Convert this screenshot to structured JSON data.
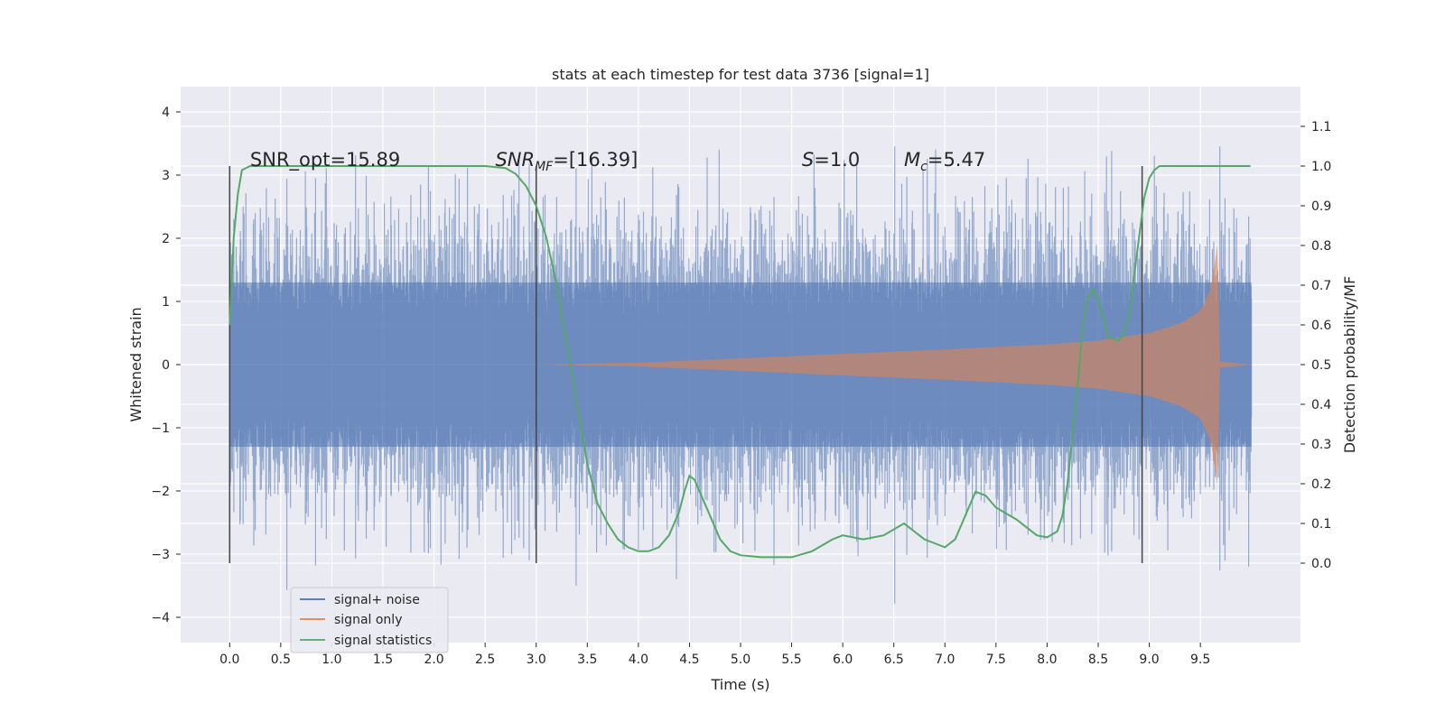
{
  "chart_data": {
    "type": "line",
    "title": "stats at each timestep for test data 3736 [signal=1]",
    "xlabel": "Time (s)",
    "ylabel_left": "Whitened strain",
    "ylabel_right": "Detection probability/MF",
    "xlim": [
      -0.48,
      10.48
    ],
    "ylim_left": [
      -4.4,
      4.4
    ],
    "ylim_right": [
      -0.2,
      1.2
    ],
    "x_ticks": [
      "0.0",
      "0.5",
      "1.0",
      "1.5",
      "2.0",
      "2.5",
      "3.0",
      "3.5",
      "4.0",
      "4.5",
      "5.0",
      "5.5",
      "6.0",
      "6.5",
      "7.0",
      "7.5",
      "8.0",
      "8.5",
      "9.0",
      "9.5"
    ],
    "y_ticks_left": [
      "4",
      "3",
      "2",
      "1",
      "0",
      "−1",
      "−2",
      "−3",
      "−4"
    ],
    "y_ticks_right": [
      "1.1",
      "1.0",
      "0.9",
      "0.8",
      "0.7",
      "0.6",
      "0.5",
      "0.4",
      "0.3",
      "0.2",
      "0.1",
      "0.0"
    ],
    "grid": true,
    "legend_position": "bottom-left",
    "annotations": [
      {
        "text": "SNR_opt=15.89",
        "x": 0.2
      },
      {
        "text_pre": "SNR",
        "text_sub": "MF",
        "text_post": "=[16.39]",
        "x": 2.6
      },
      {
        "text_pre": "S",
        "text_post": "=1.0",
        "x": 5.6
      },
      {
        "text_pre": "M",
        "text_sub": "c",
        "text_post": "=5.47",
        "x": 6.6
      }
    ],
    "vlines": [
      0.0,
      3.0,
      8.93
    ],
    "series": [
      {
        "name": "signal+ noise",
        "color": "#4c72b0",
        "kind": "noise",
        "x_range": [
          0.0,
          10.0
        ],
        "core_amplitude": 1.3,
        "peak_amplitude": 4.0
      },
      {
        "name": "signal only",
        "color": "#dd8452",
        "kind": "chirp",
        "x_range": [
          3.0,
          9.67
        ],
        "amplitude_points": [
          [
            3.0,
            0.0
          ],
          [
            4.0,
            0.03
          ],
          [
            5.0,
            0.1
          ],
          [
            6.0,
            0.17
          ],
          [
            7.0,
            0.24
          ],
          [
            8.0,
            0.32
          ],
          [
            8.5,
            0.38
          ],
          [
            9.0,
            0.5
          ],
          [
            9.3,
            0.65
          ],
          [
            9.5,
            0.85
          ],
          [
            9.6,
            1.2
          ],
          [
            9.65,
            1.7
          ],
          [
            9.67,
            2.0
          ],
          [
            9.69,
            0.05
          ],
          [
            10.0,
            0.0
          ]
        ]
      },
      {
        "name": "signal statistics",
        "color": "#55a868",
        "kind": "line",
        "axis": "right",
        "x": [
          0.0,
          0.04,
          0.08,
          0.12,
          0.2,
          0.3,
          0.5,
          1.0,
          1.5,
          2.0,
          2.5,
          2.7,
          2.8,
          2.9,
          3.0,
          3.1,
          3.2,
          3.3,
          3.4,
          3.5,
          3.6,
          3.7,
          3.8,
          3.9,
          4.0,
          4.1,
          4.2,
          4.3,
          4.4,
          4.45,
          4.5,
          4.55,
          4.6,
          4.7,
          4.8,
          4.9,
          5.0,
          5.2,
          5.5,
          5.7,
          5.9,
          6.0,
          6.2,
          6.4,
          6.6,
          6.8,
          6.9,
          7.0,
          7.1,
          7.2,
          7.3,
          7.4,
          7.5,
          7.7,
          7.8,
          7.9,
          8.0,
          8.1,
          8.15,
          8.2,
          8.3,
          8.35,
          8.4,
          8.45,
          8.5,
          8.55,
          8.6,
          8.7,
          8.75,
          8.8,
          8.85,
          8.9,
          8.95,
          9.0,
          9.05,
          9.1,
          9.2,
          9.5,
          9.99
        ],
        "values": [
          0.6,
          0.82,
          0.93,
          0.99,
          1.0,
          1.0,
          1.0,
          1.0,
          1.0,
          1.0,
          1.0,
          0.995,
          0.98,
          0.95,
          0.9,
          0.82,
          0.7,
          0.55,
          0.4,
          0.25,
          0.15,
          0.1,
          0.06,
          0.04,
          0.03,
          0.03,
          0.04,
          0.07,
          0.13,
          0.18,
          0.22,
          0.21,
          0.18,
          0.12,
          0.06,
          0.03,
          0.02,
          0.015,
          0.015,
          0.03,
          0.06,
          0.07,
          0.06,
          0.07,
          0.1,
          0.06,
          0.05,
          0.04,
          0.06,
          0.12,
          0.18,
          0.17,
          0.14,
          0.11,
          0.09,
          0.07,
          0.065,
          0.08,
          0.12,
          0.2,
          0.45,
          0.6,
          0.67,
          0.69,
          0.66,
          0.62,
          0.57,
          0.56,
          0.58,
          0.62,
          0.72,
          0.82,
          0.92,
          0.97,
          0.99,
          1.0,
          1.0,
          1.0,
          1.0
        ]
      }
    ]
  }
}
